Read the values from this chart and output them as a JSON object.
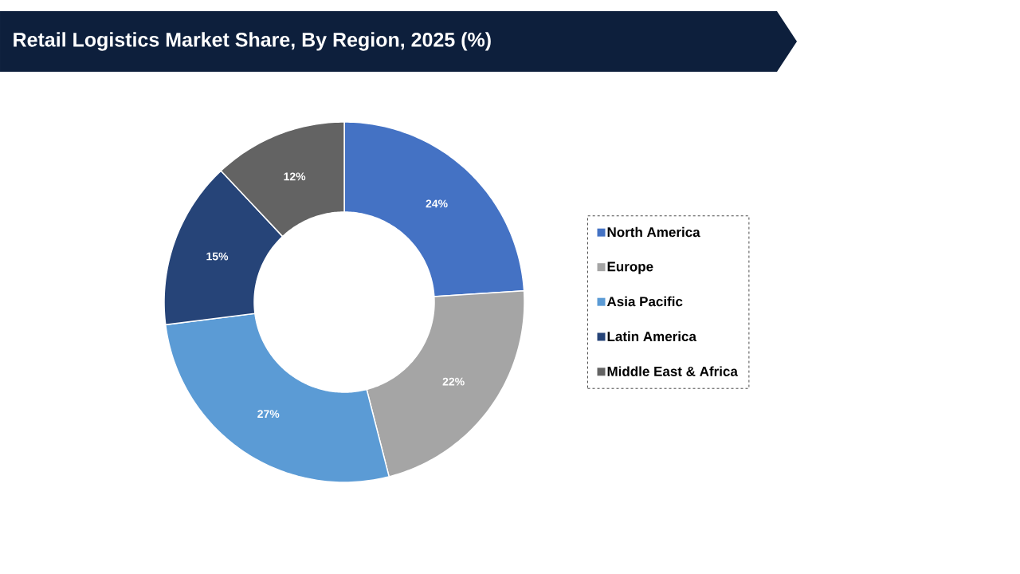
{
  "chart_data": {
    "type": "donut",
    "title": "Retail Logistics Market Share, By Region, 2025 (%)",
    "categories": [
      "North America",
      "Europe",
      "Asia Pacific",
      "Latin America",
      "Middle East & Africa"
    ],
    "values": [
      24,
      22,
      27,
      15,
      12
    ],
    "colors": [
      "#4472c4",
      "#a5a5a5",
      "#5b9bd5",
      "#264478",
      "#636363"
    ],
    "value_labels": [
      "24%",
      "22%",
      "27%",
      "15%",
      "12%"
    ],
    "legend": "right"
  }
}
